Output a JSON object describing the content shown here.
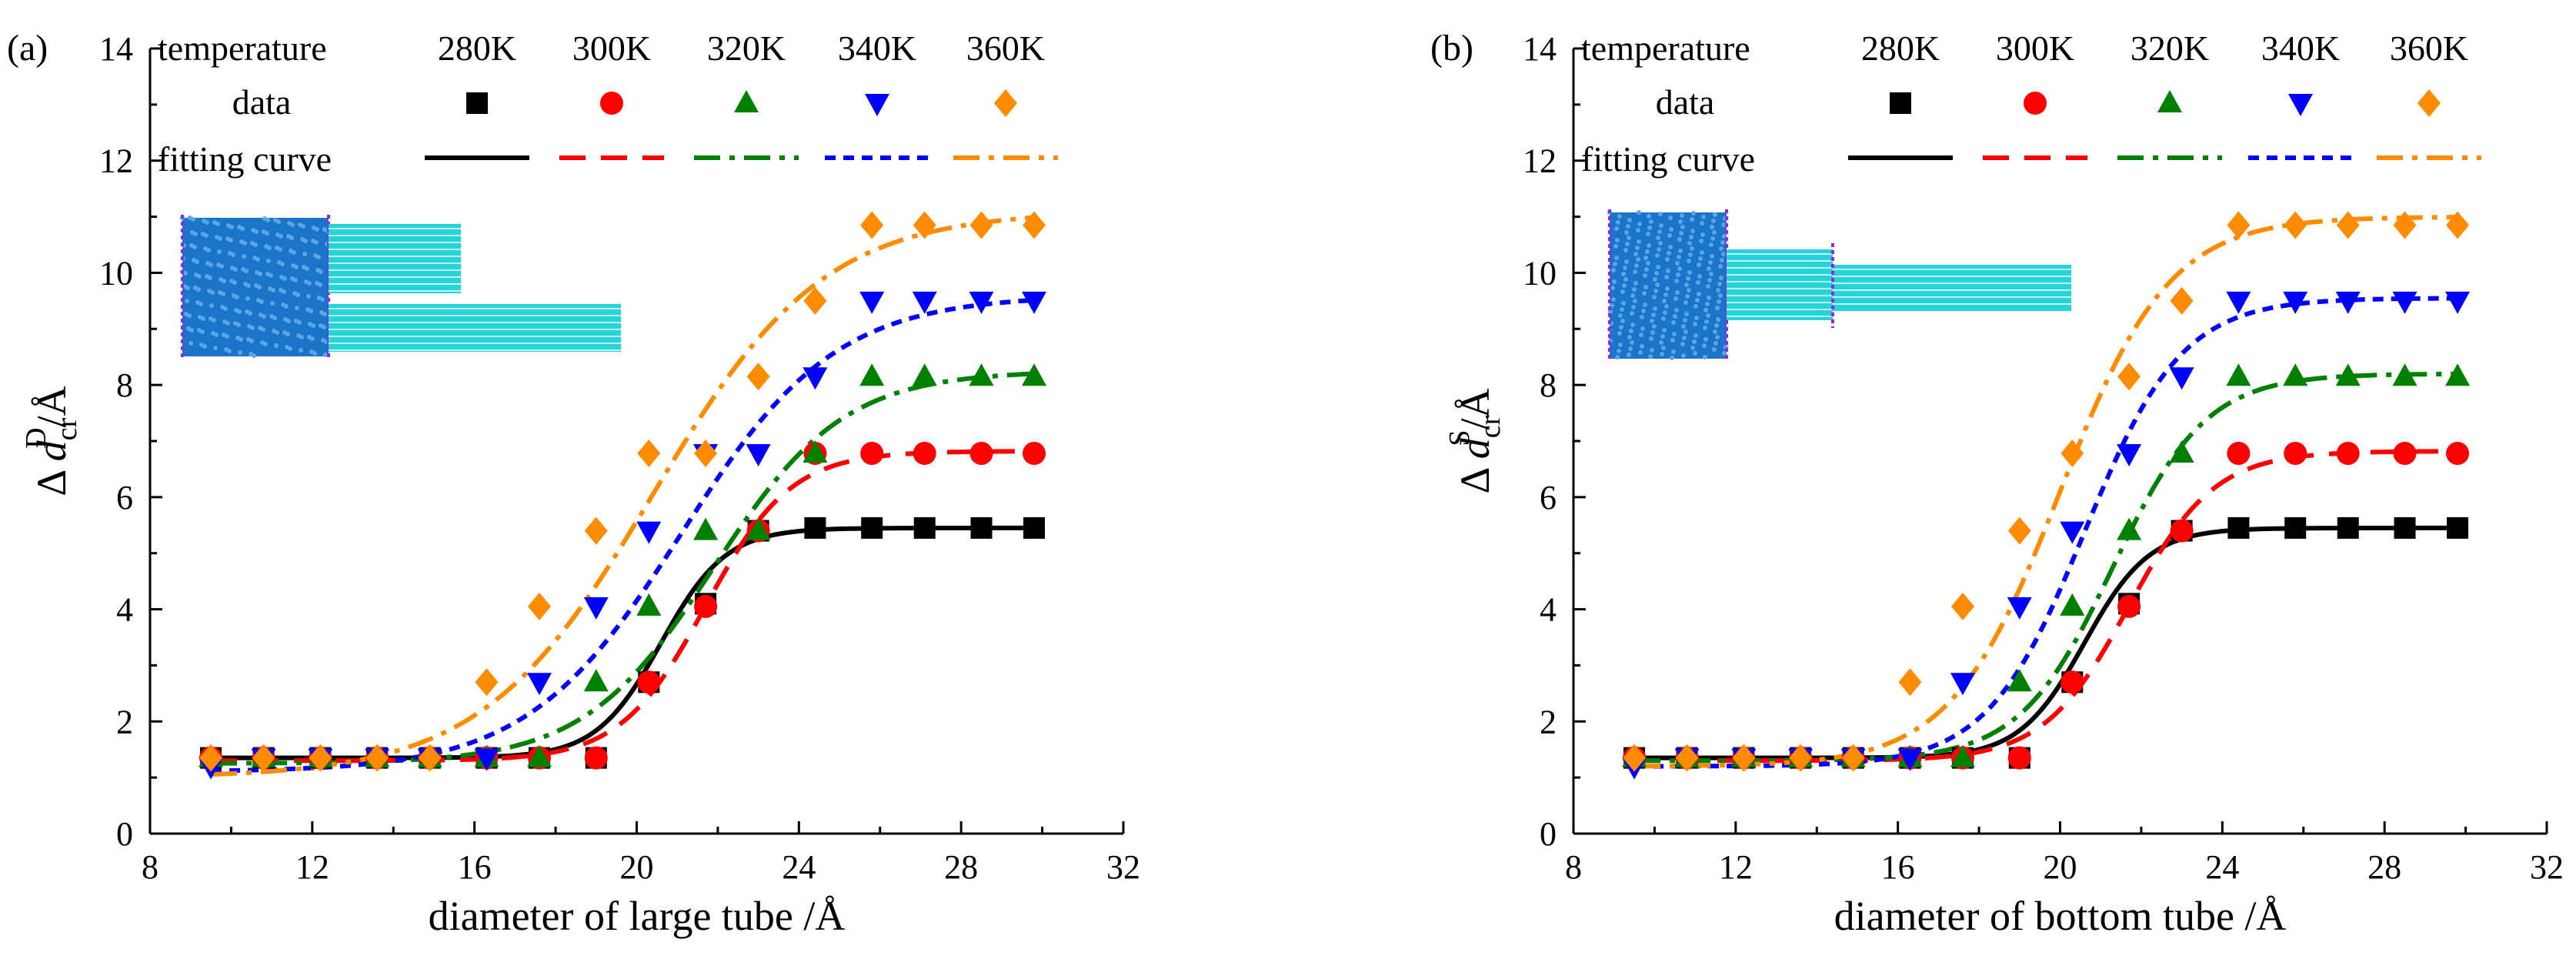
{
  "chart_data": [
    {
      "panel_label": "(a)",
      "type": "scatter",
      "xlabel": "diameter of large tube /Å",
      "ylabel": {
        "prefix": "Δ ",
        "var": "d",
        "sub": "cr",
        "sup": "D",
        "suffix": "/Å"
      },
      "xlim": [
        8,
        32
      ],
      "ylim": [
        0,
        14
      ],
      "xticks": [
        8,
        12,
        16,
        20,
        24,
        28,
        32
      ],
      "yticks": [
        0,
        2,
        4,
        6,
        8,
        10,
        12,
        14
      ],
      "grid": false,
      "legend": {
        "placement": "top",
        "header_label": "temperature",
        "data_label": "data",
        "fit_label": "fitting curve"
      },
      "x": [
        9.5,
        10.8,
        12.2,
        13.6,
        14.9,
        16.3,
        17.6,
        19.0,
        20.3,
        21.7,
        23.0,
        24.4,
        25.8,
        27.1,
        28.5,
        29.8
      ],
      "series": [
        {
          "name": "280K",
          "color": "#000000",
          "marker": "square",
          "dash": "solid",
          "values": [
            1.35,
            1.35,
            1.35,
            1.35,
            1.35,
            1.35,
            1.35,
            1.35,
            2.7,
            4.1,
            5.4,
            5.45,
            5.45,
            5.45,
            5.45,
            5.45
          ],
          "fit": {
            "A1": 1.35,
            "A2": 5.45,
            "x0": 20.6,
            "dx": 0.8
          }
        },
        {
          "name": "300K",
          "color": "#ff0000",
          "marker": "circle",
          "dash": "longdash",
          "values": [
            1.35,
            1.35,
            1.35,
            1.35,
            1.35,
            1.35,
            1.35,
            1.35,
            2.7,
            4.05,
            5.4,
            6.78,
            6.78,
            6.78,
            6.78,
            6.78
          ],
          "fit": {
            "A1": 1.3,
            "A2": 6.82,
            "x0": 21.7,
            "dx": 1.05
          }
        },
        {
          "name": "320K",
          "color": "#008000",
          "marker": "triangle-up",
          "dash": "dashdot",
          "values": [
            1.35,
            1.35,
            1.35,
            1.35,
            1.35,
            1.35,
            1.35,
            2.7,
            4.05,
            5.4,
            5.4,
            6.78,
            8.15,
            8.15,
            8.15,
            8.15
          ],
          "fit": {
            "A1": 1.25,
            "A2": 8.25,
            "x0": 21.9,
            "dx": 1.6
          }
        },
        {
          "name": "340K",
          "color": "#0000ff",
          "marker": "triangle-down",
          "dash": "shortdash",
          "values": [
            1.2,
            1.35,
            1.35,
            1.35,
            1.35,
            1.35,
            2.7,
            4.05,
            5.4,
            6.78,
            6.78,
            8.15,
            9.5,
            9.5,
            9.5,
            9.5
          ],
          "fit": {
            "A1": 1.1,
            "A2": 9.6,
            "x0": 21.1,
            "dx": 1.9
          }
        },
        {
          "name": "360K",
          "color": "#ff8c00",
          "marker": "diamond",
          "dash": "dashdot",
          "values": [
            1.35,
            1.35,
            1.35,
            1.35,
            1.35,
            2.7,
            4.05,
            5.4,
            6.78,
            6.78,
            8.15,
            9.5,
            10.85,
            10.85,
            10.85,
            10.85
          ],
          "fit": {
            "A1": 1.0,
            "A2": 11.1,
            "x0": 20.4,
            "dx": 2.1
          }
        }
      ]
    },
    {
      "panel_label": "(b)",
      "type": "scatter",
      "xlabel": "diameter of bottom tube /Å",
      "ylabel": {
        "prefix": "Δ ",
        "var": "d",
        "sub": "cr",
        "sup": "S",
        "suffix": "/Å"
      },
      "xlim": [
        8,
        32
      ],
      "ylim": [
        0,
        14
      ],
      "xticks": [
        8,
        12,
        16,
        20,
        24,
        28,
        32
      ],
      "yticks": [
        0,
        2,
        4,
        6,
        8,
        10,
        12,
        14
      ],
      "grid": false,
      "legend": {
        "placement": "top",
        "header_label": "temperature",
        "data_label": "data",
        "fit_label": "fitting curve"
      },
      "x": [
        9.5,
        10.8,
        12.2,
        13.6,
        14.9,
        16.3,
        17.6,
        19.0,
        20.3,
        21.7,
        23.0,
        24.4,
        25.8,
        27.1,
        28.5,
        29.8
      ],
      "series": [
        {
          "name": "280K",
          "color": "#000000",
          "marker": "square",
          "dash": "solid",
          "values": [
            1.35,
            1.35,
            1.35,
            1.35,
            1.35,
            1.35,
            1.35,
            1.35,
            2.7,
            4.1,
            5.4,
            5.45,
            5.45,
            5.45,
            5.45,
            5.45
          ],
          "fit": {
            "A1": 1.35,
            "A2": 5.45,
            "x0": 20.6,
            "dx": 0.8
          }
        },
        {
          "name": "300K",
          "color": "#ff0000",
          "marker": "circle",
          "dash": "longdash",
          "values": [
            1.35,
            1.35,
            1.35,
            1.35,
            1.35,
            1.35,
            1.35,
            1.35,
            2.7,
            4.05,
            5.4,
            6.78,
            6.78,
            6.78,
            6.78,
            6.78
          ],
          "fit": {
            "A1": 1.3,
            "A2": 6.82,
            "x0": 21.7,
            "dx": 1.05
          }
        },
        {
          "name": "320K",
          "color": "#008000",
          "marker": "triangle-up",
          "dash": "dashdot",
          "values": [
            1.35,
            1.35,
            1.35,
            1.35,
            1.35,
            1.35,
            1.35,
            2.7,
            4.05,
            5.4,
            6.78,
            8.15,
            8.15,
            8.15,
            8.15,
            8.15
          ],
          "fit": {
            "A1": 1.3,
            "A2": 8.2,
            "x0": 21.3,
            "dx": 1.15
          }
        },
        {
          "name": "340K",
          "color": "#0000ff",
          "marker": "triangle-down",
          "dash": "shortdash",
          "values": [
            1.2,
            1.35,
            1.35,
            1.35,
            1.35,
            1.35,
            2.7,
            4.05,
            5.4,
            6.78,
            8.15,
            9.5,
            9.5,
            9.5,
            9.5,
            9.5
          ],
          "fit": {
            "A1": 1.2,
            "A2": 9.55,
            "x0": 20.6,
            "dx": 1.2
          }
        },
        {
          "name": "360K",
          "color": "#ff8c00",
          "marker": "diamond",
          "dash": "dashdot",
          "values": [
            1.35,
            1.35,
            1.35,
            1.35,
            1.35,
            2.7,
            4.05,
            5.4,
            6.78,
            8.15,
            9.5,
            10.85,
            10.85,
            10.85,
            10.85,
            10.85
          ],
          "fit": {
            "A1": 1.2,
            "A2": 11.0,
            "x0": 20.0,
            "dx": 1.35
          }
        }
      ]
    }
  ]
}
